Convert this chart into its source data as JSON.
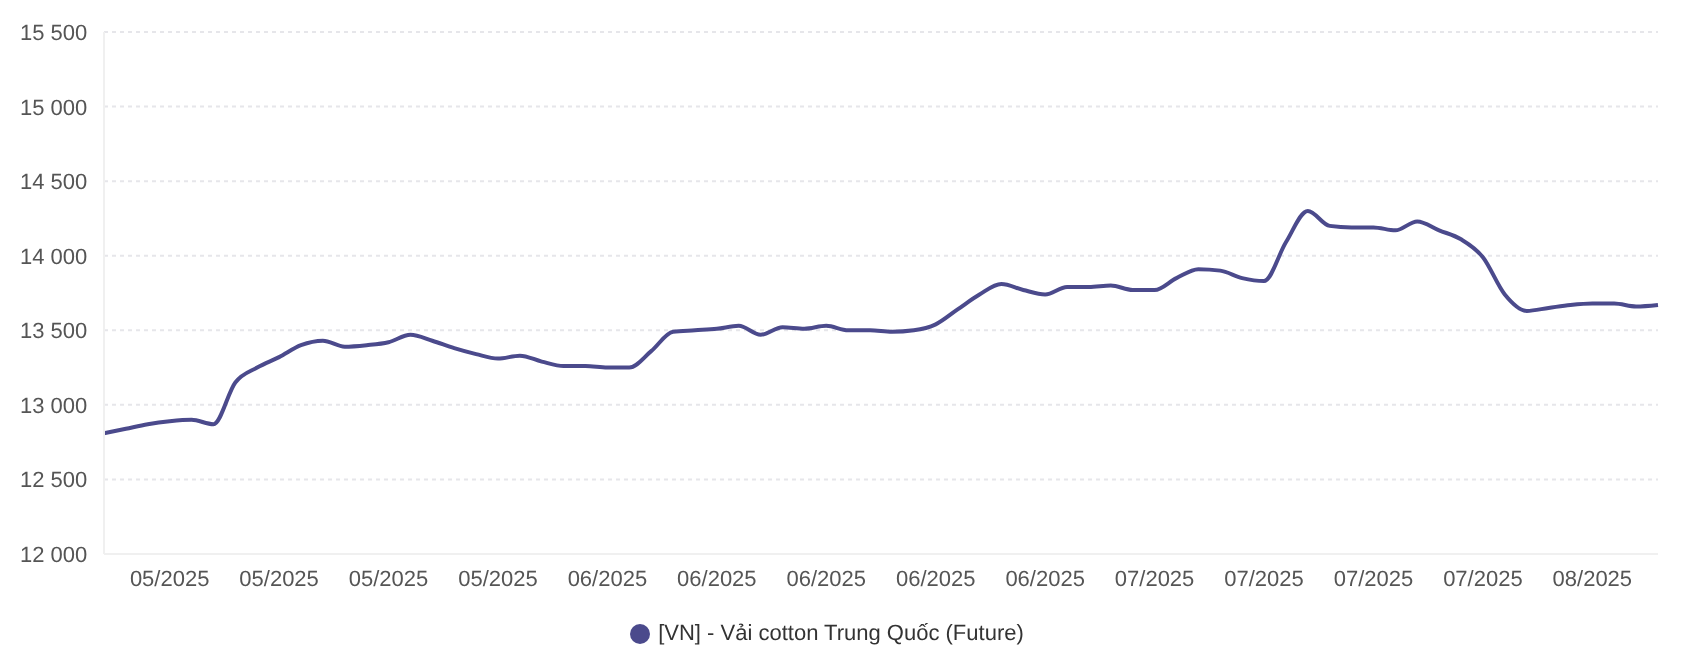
{
  "chart_data": {
    "type": "line",
    "categories": [
      null,
      null,
      null,
      "05/2025",
      null,
      null,
      null,
      null,
      "05/2025",
      null,
      null,
      null,
      null,
      "05/2025",
      null,
      null,
      null,
      null,
      "05/2025",
      null,
      null,
      null,
      null,
      "06/2025",
      null,
      null,
      null,
      null,
      "06/2025",
      null,
      null,
      null,
      null,
      "06/2025",
      null,
      null,
      null,
      null,
      "06/2025",
      null,
      null,
      null,
      null,
      "06/2025",
      null,
      null,
      null,
      null,
      "07/2025",
      null,
      null,
      null,
      null,
      "07/2025",
      null,
      null,
      null,
      null,
      "07/2025",
      null,
      null,
      null,
      null,
      "07/2025",
      null,
      null,
      null,
      null,
      "08/2025",
      null,
      null,
      null
    ],
    "series": [
      {
        "name": "[VN] - Vải cotton Trung Quốc (Future)",
        "color": "#4b4a8c",
        "values": [
          12810,
          12840,
          12870,
          12890,
          12900,
          12870,
          13150,
          13250,
          13320,
          13400,
          13430,
          13390,
          13400,
          13420,
          13470,
          13430,
          13380,
          13340,
          13310,
          13330,
          13290,
          13260,
          13260,
          13250,
          13250,
          13360,
          13490,
          13500,
          13510,
          13530,
          13470,
          13520,
          13510,
          13530,
          13500,
          13500,
          13490,
          13500,
          13540,
          13640,
          13740,
          13810,
          13770,
          13740,
          13790,
          13790,
          13800,
          13770,
          13770,
          13850,
          13910,
          13900,
          13850,
          13830,
          14090,
          14300,
          14200,
          14190,
          14190,
          14170,
          14230,
          14170,
          14110,
          13990,
          13740,
          13630,
          13650,
          13670,
          13680,
          13680,
          13660,
          13670
        ]
      }
    ],
    "ylim": [
      12000,
      15500
    ],
    "yticks": [
      {
        "value": 12000,
        "label": "12 000"
      },
      {
        "value": 12500,
        "label": "12 500"
      },
      {
        "value": 13000,
        "label": "13 000"
      },
      {
        "value": 13500,
        "label": "13 500"
      },
      {
        "value": 14000,
        "label": "14 000"
      },
      {
        "value": 14500,
        "label": "14 500"
      },
      {
        "value": 15000,
        "label": "15 000"
      },
      {
        "value": 15500,
        "label": "15 500"
      }
    ],
    "grid": "y",
    "legend": "bottom",
    "marker": "none",
    "line_style": "solid"
  }
}
